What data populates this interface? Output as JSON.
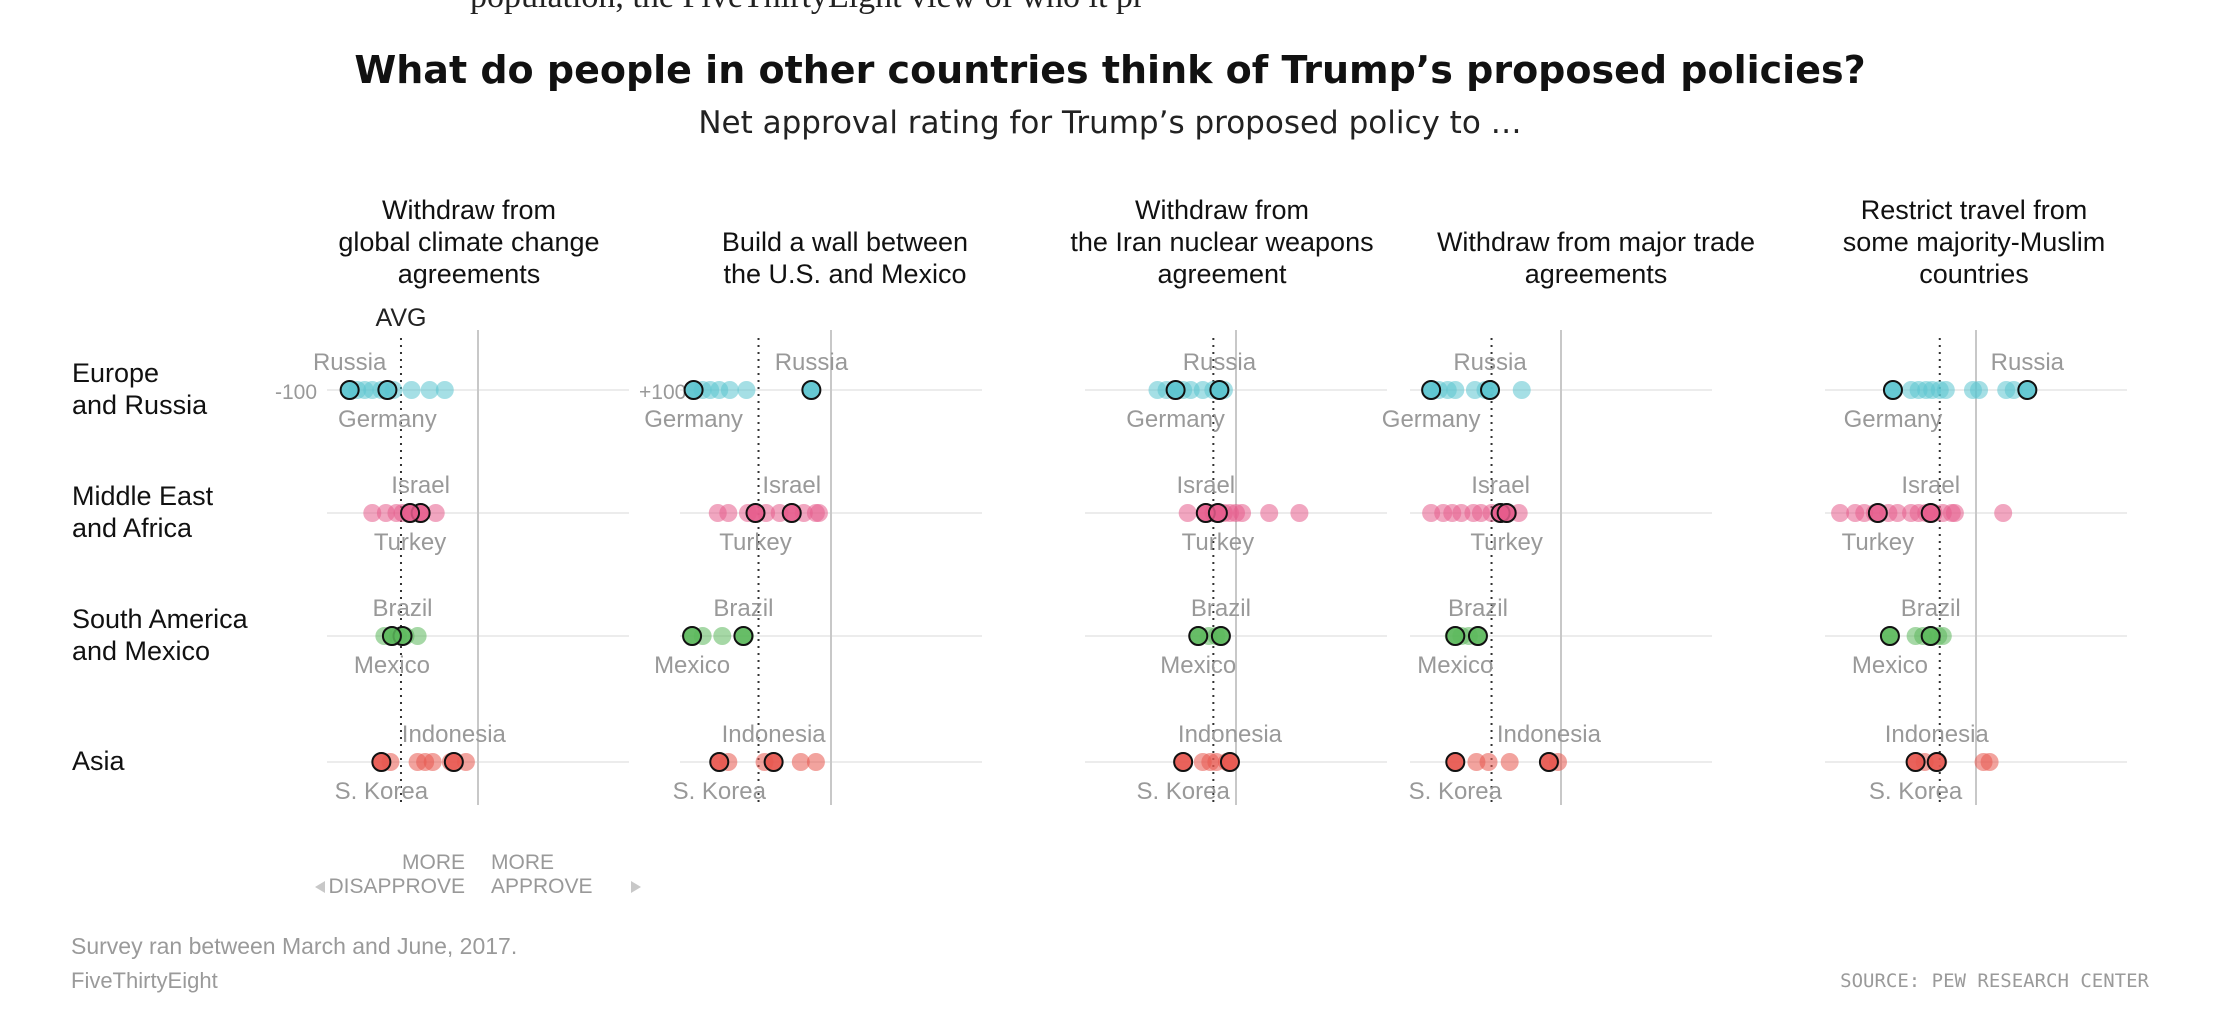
{
  "header": {
    "cut_text": "population, the FiveThirtyEight view of who it pr",
    "title": "What do people in other countries think of Trump’s proposed policies?",
    "subtitle": "Net approval rating for Trump’s proposed policy to …"
  },
  "footer": {
    "note": "Survey ran between March and June, 2017.",
    "brand": "FiveThirtyEight",
    "source": "SOURCE: PEW RESEARCH CENTER"
  },
  "colors": {
    "Europe and Russia": "#5bc4cf",
    "Middle East and Africa": "#e65c8c",
    "South America and Mexico": "#5cb85c",
    "Asia": "#e8574f"
  },
  "chart_data": {
    "type": "scatter",
    "x_range": [
      -100,
      100
    ],
    "x_tick_labels": [
      "-100",
      "+100"
    ],
    "avg_label": "AVG",
    "legend": {
      "disapprove": "MORE\nDISAPPROVE",
      "approve": "MORE\nAPPROVE"
    },
    "rows": [
      "Europe\nand Russia",
      "Middle East\nand Africa",
      "South America\nand Mexico",
      "Asia"
    ],
    "panels": [
      {
        "title": "Withdraw from\nglobal climate change\nagreements",
        "avg": -51,
        "regions": [
          {
            "region": "Europe and Russia",
            "values": [
              -85,
              -80,
              -75,
              -70,
              -64,
              -56,
              -44,
              -32,
              -22
            ],
            "labeled": [
              {
                "name": "Russia",
                "value": -85,
                "pos": "above"
              },
              {
                "name": "Germany",
                "value": -60,
                "pos": "below"
              }
            ]
          },
          {
            "region": "Middle East and Africa",
            "values": [
              -70,
              -61,
              -54,
              -50,
              -45,
              -38,
              -28
            ],
            "labeled": [
              {
                "name": "Israel",
                "value": -38,
                "pos": "above"
              },
              {
                "name": "Turkey",
                "value": -45,
                "pos": "below"
              }
            ]
          },
          {
            "region": "South America and Mexico",
            "values": [
              -62,
              -57,
              -53,
              -48,
              -40
            ],
            "labeled": [
              {
                "name": "Brazil",
                "value": -50,
                "pos": "above"
              },
              {
                "name": "Mexico",
                "value": -57,
                "pos": "below"
              }
            ]
          },
          {
            "region": "Asia",
            "values": [
              -64,
              -58,
              -40,
              -35,
              -30,
              -18,
              -8
            ],
            "labeled": [
              {
                "name": "Indonesia",
                "value": -16,
                "pos": "above"
              },
              {
                "name": "S. Korea",
                "value": -64,
                "pos": "below"
              }
            ]
          }
        ]
      },
      {
        "title": "Build a wall between\nthe U.S. and Mexico",
        "avg": -48,
        "regions": [
          {
            "region": "Europe and Russia",
            "values": [
              -91,
              -85,
              -80,
              -74,
              -67,
              -56,
              -13
            ],
            "labeled": [
              {
                "name": "Russia",
                "value": -13,
                "pos": "above"
              },
              {
                "name": "Germany",
                "value": -91,
                "pos": "below"
              }
            ]
          },
          {
            "region": "Middle East and Africa",
            "values": [
              -75,
              -68,
              -55,
              -50,
              -43,
              -34,
              -26,
              -18,
              -10,
              -8
            ],
            "labeled": [
              {
                "name": "Israel",
                "value": -26,
                "pos": "above"
              },
              {
                "name": "Turkey",
                "value": -50,
                "pos": "below"
              }
            ]
          },
          {
            "region": "South America and Mexico",
            "values": [
              -92,
              -85,
              -72,
              -57
            ],
            "labeled": [
              {
                "name": "Brazil",
                "value": -58,
                "pos": "above"
              },
              {
                "name": "Mexico",
                "value": -92,
                "pos": "below"
              }
            ]
          },
          {
            "region": "Asia",
            "values": [
              -74,
              -68,
              -44,
              -38,
              -20,
              -10
            ],
            "labeled": [
              {
                "name": "Indonesia",
                "value": -38,
                "pos": "above"
              },
              {
                "name": "S. Korea",
                "value": -74,
                "pos": "below"
              }
            ]
          }
        ]
      },
      {
        "title": "Withdraw from\nthe Iran nuclear weapons\nagreement",
        "avg": -15,
        "regions": [
          {
            "region": "Europe and Russia",
            "values": [
              -52,
              -46,
              -40,
              -35,
              -30,
              -22,
              -15,
              -11,
              -8
            ],
            "labeled": [
              {
                "name": "Russia",
                "value": -11,
                "pos": "above"
              },
              {
                "name": "Germany",
                "value": -40,
                "pos": "below"
              }
            ]
          },
          {
            "region": "Middle East and Africa",
            "values": [
              -32,
              -20,
              -15,
              -12,
              -8,
              -4,
              0,
              4,
              22,
              42
            ],
            "labeled": [
              {
                "name": "Israel",
                "value": -20,
                "pos": "above"
              },
              {
                "name": "Turkey",
                "value": -12,
                "pos": "below"
              }
            ]
          },
          {
            "region": "South America and Mexico",
            "values": [
              -25,
              -18,
              -13,
              -10
            ],
            "labeled": [
              {
                "name": "Brazil",
                "value": -10,
                "pos": "above"
              },
              {
                "name": "Mexico",
                "value": -25,
                "pos": "below"
              }
            ]
          },
          {
            "region": "Asia",
            "values": [
              -35,
              -22,
              -17,
              -13,
              -6,
              -4
            ],
            "labeled": [
              {
                "name": "Indonesia",
                "value": -4,
                "pos": "above"
              },
              {
                "name": "S. Korea",
                "value": -35,
                "pos": "below"
              }
            ]
          }
        ]
      },
      {
        "title": "Withdraw from major trade\nagreements",
        "avg": -46,
        "regions": [
          {
            "region": "Europe and Russia",
            "values": [
              -86,
              -81,
              -75,
              -70,
              -57,
              -50,
              -47,
              -26
            ],
            "labeled": [
              {
                "name": "Russia",
                "value": -47,
                "pos": "above"
              },
              {
                "name": "Germany",
                "value": -86,
                "pos": "below"
              }
            ]
          },
          {
            "region": "Middle East and Africa",
            "values": [
              -86,
              -78,
              -72,
              -66,
              -58,
              -53,
              -46,
              -40,
              -35,
              -28
            ],
            "labeled": [
              {
                "name": "Israel",
                "value": -40,
                "pos": "above"
              },
              {
                "name": "Turkey",
                "value": -36,
                "pos": "below"
              }
            ]
          },
          {
            "region": "South America and Mexico",
            "values": [
              -71,
              -66,
              -61,
              -55
            ],
            "labeled": [
              {
                "name": "Brazil",
                "value": -55,
                "pos": "above"
              },
              {
                "name": "Mexico",
                "value": -70,
                "pos": "below"
              }
            ]
          },
          {
            "region": "Asia",
            "values": [
              -70,
              -56,
              -48,
              -34,
              -7,
              -2
            ],
            "labeled": [
              {
                "name": "Indonesia",
                "value": -8,
                "pos": "above"
              },
              {
                "name": "S. Korea",
                "value": -70,
                "pos": "below"
              }
            ]
          }
        ]
      },
      {
        "title": "Restrict travel from\nsome majority-Muslim\ncountries",
        "avg": -24,
        "regions": [
          {
            "region": "Europe and Russia",
            "values": [
              -55,
              -43,
              -38,
              -33,
              -29,
              -24,
              -20,
              -2,
              2,
              20,
              25,
              34
            ],
            "labeled": [
              {
                "name": "Russia",
                "value": 34,
                "pos": "above"
              },
              {
                "name": "Germany",
                "value": -55,
                "pos": "below"
              }
            ]
          },
          {
            "region": "Middle East and Africa",
            "values": [
              -90,
              -80,
              -74,
              -67,
              -58,
              -52,
              -43,
              -38,
              -33,
              -28,
              -22,
              -16,
              -14,
              18
            ],
            "labeled": [
              {
                "name": "Israel",
                "value": -30,
                "pos": "above"
              },
              {
                "name": "Turkey",
                "value": -65,
                "pos": "below"
              }
            ]
          },
          {
            "region": "South America and Mexico",
            "values": [
              -57,
              -40,
              -35,
              -30,
              -25,
              -22
            ],
            "labeled": [
              {
                "name": "Brazil",
                "value": -30,
                "pos": "above"
              },
              {
                "name": "Mexico",
                "value": -57,
                "pos": "below"
              }
            ]
          },
          {
            "region": "Asia",
            "values": [
              -40,
              -34,
              -25,
              5,
              9
            ],
            "labeled": [
              {
                "name": "Indonesia",
                "value": -26,
                "pos": "above"
              },
              {
                "name": "S. Korea",
                "value": -40,
                "pos": "below"
              }
            ]
          }
        ]
      }
    ]
  }
}
